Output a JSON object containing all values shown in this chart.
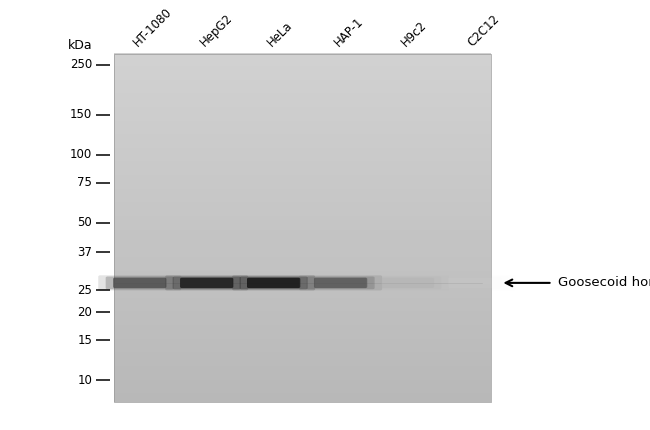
{
  "background_color": "#ffffff",
  "blot_bg_light": 0.82,
  "blot_bg_dark": 0.72,
  "kda_label": "kDa",
  "marker_labels": [
    "250",
    "150",
    "100",
    "75",
    "50",
    "37",
    "25",
    "20",
    "15",
    "10"
  ],
  "marker_kda": [
    250,
    150,
    100,
    75,
    50,
    37,
    25,
    20,
    15,
    10
  ],
  "lane_labels": [
    "HT-1080",
    "HepG2",
    "HeLa",
    "HAP-1",
    "H9c2",
    "C2C12"
  ],
  "band_kda": 27,
  "band_intensities": [
    0.72,
    0.88,
    0.9,
    0.7,
    0.32,
    0.05
  ],
  "annotation_label": "Goosecoid homeobox",
  "font_size_markers": 8.5,
  "font_size_lanes": 8.5,
  "font_size_kda": 9,
  "font_size_annotation": 9.5
}
